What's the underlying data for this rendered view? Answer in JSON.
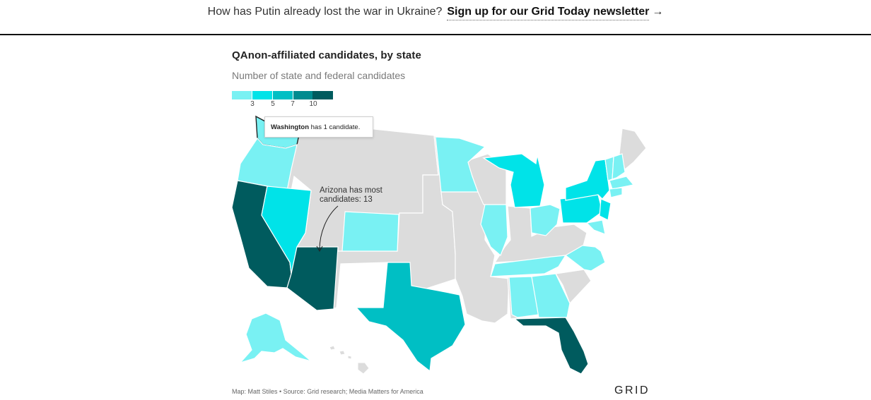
{
  "top_banner": {
    "question": "How has Putin already lost the war in Ukraine?",
    "cta": "Sign up for our Grid Today newsletter",
    "arrow": "→"
  },
  "map": {
    "title": "QAnon-affiliated candidates, by state",
    "subtitle": "Number of state and federal candidates",
    "legend": {
      "colors": [
        "#79f1f3",
        "#00e3e8",
        "#00bfc4",
        "#008b8f",
        "#005b5e"
      ],
      "ticks": [
        "3",
        "5",
        "7",
        "10"
      ]
    },
    "no_data_color": "#dcdcdc",
    "tooltip": {
      "state": "Washington",
      "rest": " has 1 candidate."
    },
    "annotation": {
      "line1": "Arizona has most",
      "line2": "candidates: 13"
    },
    "states": [
      {
        "name": "Washington",
        "color": "#79f1f3"
      },
      {
        "name": "Oregon",
        "color": "#79f1f3"
      },
      {
        "name": "California",
        "color": "#005b5e"
      },
      {
        "name": "Nevada",
        "color": "#00e3e8"
      },
      {
        "name": "Arizona",
        "color": "#005b5e"
      },
      {
        "name": "Colorado",
        "color": "#79f1f3"
      },
      {
        "name": "Texas",
        "color": "#00bfc4"
      },
      {
        "name": "Minnesota",
        "color": "#79f1f3"
      },
      {
        "name": "Michigan",
        "color": "#00e3e8"
      },
      {
        "name": "Illinois",
        "color": "#79f1f3"
      },
      {
        "name": "Ohio",
        "color": "#79f1f3"
      },
      {
        "name": "Pennsylvania",
        "color": "#00e3e8"
      },
      {
        "name": "New York",
        "color": "#00e3e8"
      },
      {
        "name": "New Jersey",
        "color": "#00e3e8"
      },
      {
        "name": "Tennessee",
        "color": "#79f1f3"
      },
      {
        "name": "North Carolina",
        "color": "#79f1f3"
      },
      {
        "name": "Alabama",
        "color": "#79f1f3"
      },
      {
        "name": "Georgia",
        "color": "#79f1f3"
      },
      {
        "name": "Florida",
        "color": "#005b5e"
      },
      {
        "name": "Alaska",
        "color": "#79f1f3"
      },
      {
        "name": "Vermont",
        "color": "#79f1f3"
      },
      {
        "name": "New Hampshire",
        "color": "#79f1f3"
      },
      {
        "name": "Massachusetts",
        "color": "#79f1f3"
      },
      {
        "name": "Connecticut",
        "color": "#79f1f3"
      },
      {
        "name": "Maryland",
        "color": "#79f1f3"
      },
      {
        "name": "Virginia",
        "color": "#79f1f3"
      }
    ]
  },
  "footer": {
    "credit": "Map: Matt Stiles • Source: Grid research; Media Matters for America",
    "logo": "GRID"
  }
}
